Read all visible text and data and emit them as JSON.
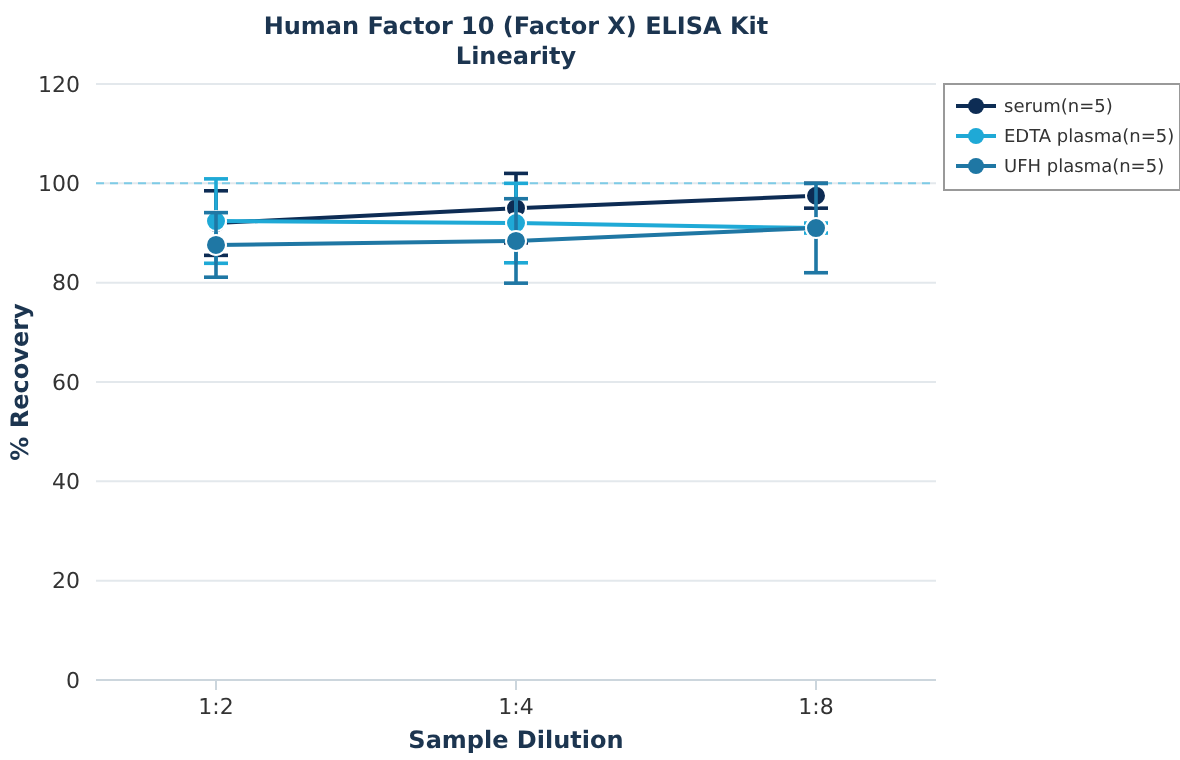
{
  "chart_data": {
    "type": "line",
    "title": "Human Factor 10 (Factor X) ELISA Kit",
    "subtitle": "Linearity",
    "xlabel": "Sample Dilution",
    "ylabel": "% Recovery",
    "categories": [
      "1:2",
      "1:4",
      "1:8"
    ],
    "series": [
      {
        "name": "serum(n=5)",
        "color": "#0d2c54",
        "values": [
          92,
          95,
          97.5
        ],
        "errors": [
          6.5,
          7,
          2.5
        ]
      },
      {
        "name": "EDTA plasma(n=5)",
        "color": "#1fa9d6",
        "values": [
          92.4,
          92,
          91
        ],
        "errors": [
          8.5,
          8,
          1
        ]
      },
      {
        "name": "UFH plasma(n=5)",
        "color": "#1f77a4",
        "values": [
          87.6,
          88.4,
          91
        ],
        "errors": [
          6.5,
          8.5,
          9
        ]
      }
    ],
    "ylim": [
      0,
      120
    ],
    "yticks": [
      0,
      20,
      40,
      60,
      80,
      100,
      120
    ],
    "grid": "y",
    "legend": "top right",
    "marker": "circle",
    "line_style": "solid",
    "ref_lines": [
      {
        "axis": "y",
        "value": 100,
        "color": "#7ecbe6",
        "line_style": "dashed"
      }
    ]
  }
}
